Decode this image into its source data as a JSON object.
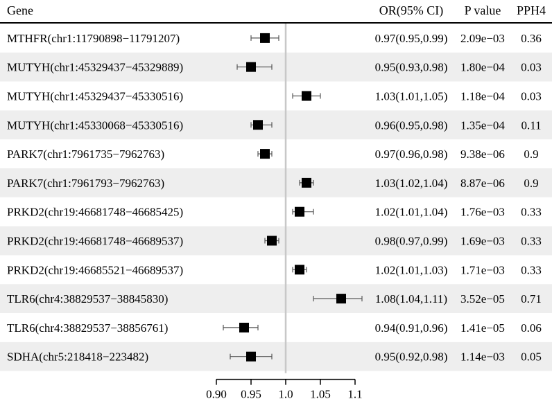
{
  "header": {
    "gene": "Gene",
    "or": "OR(95% CI)",
    "p": "P value",
    "pph4": "PPH4"
  },
  "colors": {
    "stripe": "#eeeeee",
    "ref_line": "#c8c8c8",
    "marker": "#000000",
    "ci_line": "#555555"
  },
  "chart_data": {
    "type": "forest",
    "x_axis": {
      "scale": "linear",
      "range": [
        0.9,
        1.1
      ],
      "ticks": [
        0.9,
        0.95,
        1.0,
        1.05,
        1.1
      ],
      "tick_labels": [
        "0.90",
        "0.95",
        "1.0",
        "1.05",
        "1.1"
      ],
      "reference": 1.0
    },
    "rows": [
      {
        "gene": "MTHFR(chr1:11790898−11791207)",
        "or": 0.97,
        "lower": 0.95,
        "upper": 0.99,
        "or_text": "0.97(0.95,0.99)",
        "p": "2.09e−03",
        "pph4": "0.36"
      },
      {
        "gene": "MUTYH(chr1:45329437−45329889)",
        "or": 0.95,
        "lower": 0.93,
        "upper": 0.98,
        "or_text": "0.95(0.93,0.98)",
        "p": "1.80e−04",
        "pph4": "0.03"
      },
      {
        "gene": "MUTYH(chr1:45329437−45330516)",
        "or": 1.03,
        "lower": 1.01,
        "upper": 1.05,
        "or_text": "1.03(1.01,1.05)",
        "p": "1.18e−04",
        "pph4": "0.03"
      },
      {
        "gene": "MUTYH(chr1:45330068−45330516)",
        "or": 0.96,
        "lower": 0.95,
        "upper": 0.98,
        "or_text": "0.96(0.95,0.98)",
        "p": "1.35e−04",
        "pph4": "0.11"
      },
      {
        "gene": "PARK7(chr1:7961735−7962763)",
        "or": 0.97,
        "lower": 0.96,
        "upper": 0.98,
        "or_text": "0.97(0.96,0.98)",
        "p": "9.38e−06",
        "pph4": "0.9"
      },
      {
        "gene": "PARK7(chr1:7961793−7962763)",
        "or": 1.03,
        "lower": 1.02,
        "upper": 1.04,
        "or_text": "1.03(1.02,1.04)",
        "p": "8.87e−06",
        "pph4": "0.9"
      },
      {
        "gene": "PRKD2(chr19:46681748−46685425)",
        "or": 1.02,
        "lower": 1.01,
        "upper": 1.04,
        "or_text": "1.02(1.01,1.04)",
        "p": "1.76e−03",
        "pph4": "0.33"
      },
      {
        "gene": "PRKD2(chr19:46681748−46689537)",
        "or": 0.98,
        "lower": 0.97,
        "upper": 0.99,
        "or_text": "0.98(0.97,0.99)",
        "p": "1.69e−03",
        "pph4": "0.33"
      },
      {
        "gene": "PRKD2(chr19:46685521−46689537)",
        "or": 1.02,
        "lower": 1.01,
        "upper": 1.03,
        "or_text": "1.02(1.01,1.03)",
        "p": "1.71e−03",
        "pph4": "0.33"
      },
      {
        "gene": "TLR6(chr4:38829537−38845830)",
        "or": 1.08,
        "lower": 1.04,
        "upper": 1.11,
        "or_text": "1.08(1.04,1.11)",
        "p": "3.52e−05",
        "pph4": "0.71"
      },
      {
        "gene": "TLR6(chr4:38829537−38856761)",
        "or": 0.94,
        "lower": 0.91,
        "upper": 0.96,
        "or_text": "0.94(0.91,0.96)",
        "p": "1.41e−05",
        "pph4": "0.06"
      },
      {
        "gene": "SDHA(chr5:218418−223482)",
        "or": 0.95,
        "lower": 0.92,
        "upper": 0.98,
        "or_text": "0.95(0.92,0.98)",
        "p": "1.14e−03",
        "pph4": "0.05"
      }
    ]
  }
}
